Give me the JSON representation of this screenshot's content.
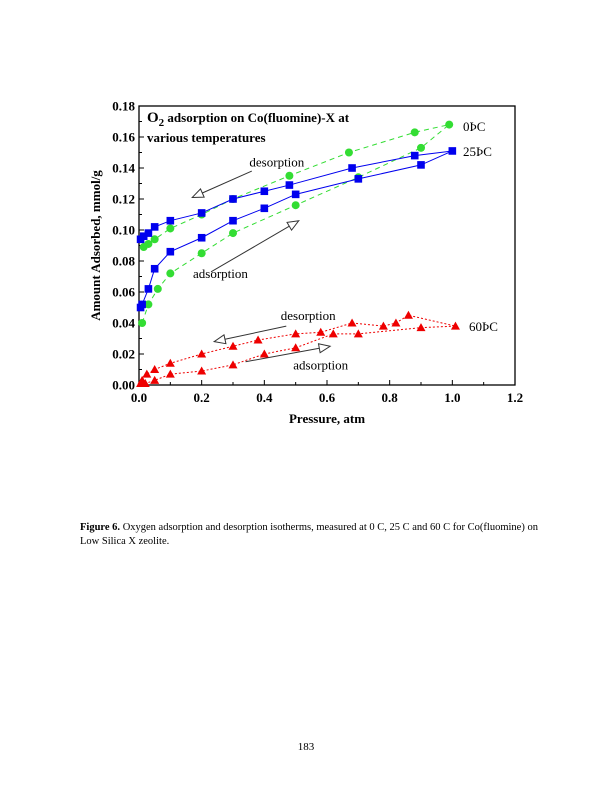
{
  "chart_data": {
    "type": "scatter",
    "title_prefix": "O",
    "title_sub": "2",
    "title_line1": " adsorption on Co(fluomine)-X at",
    "title_line2": "various temperatures",
    "xlabel": "Pressure, atm",
    "ylabel": "Amount Adsorbed, mmol/g",
    "xlim": [
      0,
      1.2
    ],
    "ylim": [
      0,
      0.18
    ],
    "xticks": [
      "0.0",
      "0.2",
      "0.4",
      "0.6",
      "0.8",
      "1.0",
      "1.2"
    ],
    "yticks": [
      "0.00",
      "0.02",
      "0.04",
      "0.06",
      "0.08",
      "0.10",
      "0.12",
      "0.14",
      "0.16",
      "0.18"
    ],
    "series": [
      {
        "name": "0ÞC",
        "color": "#33dd33",
        "marker": "circle",
        "line": "dashed",
        "x": [
          0.01,
          0.03,
          0.06,
          0.1,
          0.2,
          0.3,
          0.5,
          0.7,
          0.9,
          0.99,
          0.88,
          0.67,
          0.48,
          0.3,
          0.2,
          0.1,
          0.05,
          0.03,
          0.015
        ],
        "y": [
          0.04,
          0.052,
          0.062,
          0.072,
          0.085,
          0.098,
          0.116,
          0.134,
          0.153,
          0.168,
          0.163,
          0.15,
          0.135,
          0.12,
          0.11,
          0.101,
          0.094,
          0.091,
          0.089
        ]
      },
      {
        "name": "25ÞC",
        "color": "#0000ee",
        "marker": "square",
        "line": "solid",
        "x": [
          0.005,
          0.01,
          0.03,
          0.05,
          0.1,
          0.2,
          0.3,
          0.4,
          0.5,
          0.7,
          0.9,
          1.0,
          0.88,
          0.68,
          0.48,
          0.4,
          0.3,
          0.2,
          0.1,
          0.05,
          0.03,
          0.015,
          0.005
        ],
        "y": [
          0.05,
          0.052,
          0.062,
          0.075,
          0.086,
          0.095,
          0.106,
          0.114,
          0.123,
          0.133,
          0.142,
          0.151,
          0.148,
          0.14,
          0.129,
          0.125,
          0.12,
          0.111,
          0.106,
          0.102,
          0.098,
          0.096,
          0.094
        ]
      },
      {
        "name": "60ÞC",
        "color": "#ee0000",
        "marker": "triangle",
        "line": "dotted",
        "x": [
          0.005,
          0.02,
          0.05,
          0.1,
          0.2,
          0.3,
          0.4,
          0.5,
          0.62,
          0.7,
          0.9,
          1.01,
          0.86,
          0.82,
          0.78,
          0.68,
          0.58,
          0.5,
          0.38,
          0.3,
          0.2,
          0.1,
          0.05,
          0.025,
          0.01
        ],
        "y": [
          0.001,
          0.001,
          0.003,
          0.007,
          0.009,
          0.013,
          0.02,
          0.024,
          0.033,
          0.033,
          0.037,
          0.038,
          0.045,
          0.04,
          0.038,
          0.04,
          0.034,
          0.033,
          0.029,
          0.025,
          0.02,
          0.014,
          0.01,
          0.007,
          0.003
        ]
      }
    ],
    "annotations": [
      {
        "text": "desorption",
        "x": 0.44,
        "y": 0.141,
        "arrow_from": [
          0.36,
          0.138
        ],
        "arrow_to": [
          0.17,
          0.121
        ]
      },
      {
        "text": "adsorption",
        "x": 0.26,
        "y": 0.069,
        "arrow_from": [
          0.23,
          0.073
        ],
        "arrow_to": [
          0.51,
          0.106
        ]
      },
      {
        "text": "desorption",
        "x": 0.54,
        "y": 0.042,
        "arrow_from": [
          0.47,
          0.038
        ],
        "arrow_to": [
          0.24,
          0.028
        ]
      },
      {
        "text": "adsorption",
        "x": 0.58,
        "y": 0.01,
        "arrow_from": [
          0.34,
          0.015
        ],
        "arrow_to": [
          0.61,
          0.025
        ]
      }
    ]
  },
  "caption": {
    "label": "Figure 6.",
    "text": " Oxygen adsorption and desorption isotherms, measured at 0   C, 25   C and 60   C for Co(fluomine) on Low Silica X zeolite."
  },
  "page_number": "183"
}
